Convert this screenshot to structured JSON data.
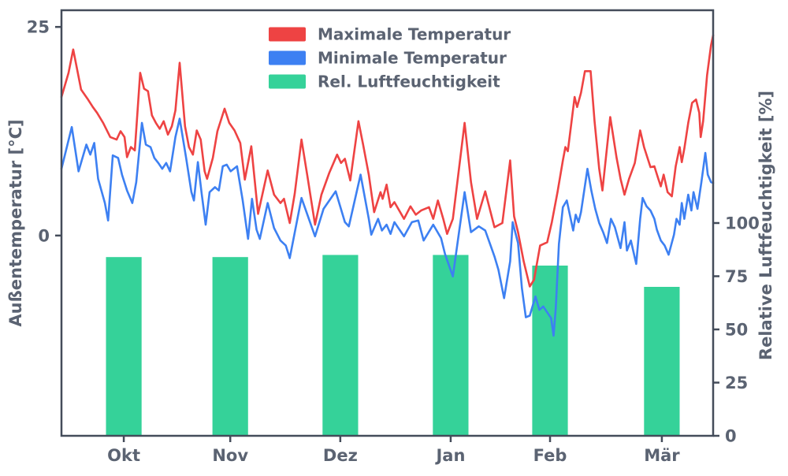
{
  "chart_data": {
    "type": "line+bar",
    "title": "",
    "left_axis": {
      "label": "Außentemperatur [°C]",
      "ticks": [
        0,
        25
      ],
      "ylim": [
        -24,
        27
      ]
    },
    "right_axis": {
      "label": "Relative Luftfeuchtigkeit [%]",
      "ticks": [
        0,
        25,
        50,
        75,
        100
      ],
      "ylim": [
        0,
        200
      ]
    },
    "x_axis": {
      "tick_labels": [
        "Okt",
        "Nov",
        "Dez",
        "Jan",
        "Feb",
        "Mär"
      ],
      "tick_days": [
        17.5,
        47.4,
        78.3,
        109.3,
        137.2,
        168.6
      ],
      "total_days": 183
    },
    "legend": [
      {
        "label": "Maximale Temperatur",
        "color": "#ee4343"
      },
      {
        "label": "Minimale Temperatur",
        "color": "#3d80f2"
      },
      {
        "label": "Rel. Luftfeuchtigkeit",
        "color": "#35d299"
      }
    ],
    "humidity_bars": {
      "months": [
        "Okt",
        "Nov",
        "Dez",
        "Jan",
        "Feb",
        "Mär"
      ],
      "values_pct": [
        84,
        84,
        85,
        85,
        80,
        70
      ],
      "bar_width_days": 10,
      "color": "#35d299"
    },
    "series": [
      {
        "name": "Maximale Temperatur",
        "color": "#ee4343",
        "points": [
          [
            0,
            16.6
          ],
          [
            2,
            19.5
          ],
          [
            3.3,
            22.3
          ],
          [
            5.5,
            17.5
          ],
          [
            7.3,
            16.4
          ],
          [
            8.8,
            15.4
          ],
          [
            10,
            14.7
          ],
          [
            11.7,
            13.5
          ],
          [
            13.7,
            11.8
          ],
          [
            15.5,
            11.5
          ],
          [
            16.6,
            12.5
          ],
          [
            17.7,
            11.8
          ],
          [
            18.4,
            9.4
          ],
          [
            19.5,
            10.6
          ],
          [
            20.6,
            10.2
          ],
          [
            22.1,
            19.5
          ],
          [
            23.2,
            17.6
          ],
          [
            24.3,
            17.3
          ],
          [
            25.4,
            14.4
          ],
          [
            26.5,
            13.5
          ],
          [
            27.6,
            12.8
          ],
          [
            28.7,
            13.7
          ],
          [
            29.9,
            12.1
          ],
          [
            31,
            13.1
          ],
          [
            32,
            15
          ],
          [
            33.2,
            20.7
          ],
          [
            34.7,
            13.1
          ],
          [
            35.8,
            10.6
          ],
          [
            36.9,
            9.7
          ],
          [
            38,
            12.6
          ],
          [
            39.1,
            11.5
          ],
          [
            40.2,
            7.7
          ],
          [
            40.9,
            6.8
          ],
          [
            42.5,
            9.3
          ],
          [
            43.8,
            12.5
          ],
          [
            45.8,
            15.2
          ],
          [
            47.1,
            13.5
          ],
          [
            48.6,
            12.6
          ],
          [
            50.2,
            11.1
          ],
          [
            51.5,
            6.7
          ],
          [
            53.3,
            10.7
          ],
          [
            55.2,
            2.6
          ],
          [
            57.9,
            7.8
          ],
          [
            59.7,
            4.9
          ],
          [
            61.5,
            3.9
          ],
          [
            62.5,
            4.4
          ],
          [
            64.1,
            1.5
          ],
          [
            65.5,
            5
          ],
          [
            67.4,
            11.5
          ],
          [
            69,
            7.3
          ],
          [
            71.2,
            1.3
          ],
          [
            73,
            4.9
          ],
          [
            75.2,
            7.5
          ],
          [
            77.4,
            9.7
          ],
          [
            78.5,
            8.7
          ],
          [
            79.6,
            9.2
          ],
          [
            81.1,
            6.6
          ],
          [
            83.4,
            13.7
          ],
          [
            84.7,
            10.9
          ],
          [
            86.3,
            7.3
          ],
          [
            87.8,
            2.8
          ],
          [
            89.6,
            5.2
          ],
          [
            90.2,
            4.4
          ],
          [
            91.3,
            6.1
          ],
          [
            92.4,
            3.4
          ],
          [
            93.5,
            4
          ],
          [
            96.2,
            2
          ],
          [
            98,
            3.5
          ],
          [
            99.5,
            2.5
          ],
          [
            101,
            3
          ],
          [
            103.2,
            3.4
          ],
          [
            104.4,
            2
          ],
          [
            105.7,
            4.2
          ],
          [
            107.2,
            2
          ],
          [
            108.3,
            0.2
          ],
          [
            109.9,
            2
          ],
          [
            113.2,
            13.5
          ],
          [
            115,
            6.4
          ],
          [
            116.7,
            2
          ],
          [
            119,
            5.3
          ],
          [
            121.6,
            1
          ],
          [
            123.8,
            1.5
          ],
          [
            126,
            9
          ],
          [
            127.1,
            2.3
          ],
          [
            128.2,
            0.4
          ],
          [
            129.8,
            -3.1
          ],
          [
            131.5,
            -6.1
          ],
          [
            132.7,
            -5.3
          ],
          [
            134.4,
            -1.2
          ],
          [
            136.4,
            -0.8
          ],
          [
            137.7,
            1.6
          ],
          [
            139.3,
            5.2
          ],
          [
            140.8,
            9
          ],
          [
            141.5,
            10.6
          ],
          [
            142.2,
            10.1
          ],
          [
            144.1,
            16.6
          ],
          [
            144.8,
            15.4
          ],
          [
            145.9,
            17.1
          ],
          [
            147,
            19.7
          ],
          [
            148.6,
            19.7
          ],
          [
            149.7,
            13.7
          ],
          [
            151,
            8
          ],
          [
            151.9,
            5.4
          ],
          [
            154.1,
            14.2
          ],
          [
            155.9,
            9.3
          ],
          [
            157,
            6.8
          ],
          [
            158.1,
            4.9
          ],
          [
            159.4,
            6.8
          ],
          [
            161,
            8.7
          ],
          [
            162.5,
            12.6
          ],
          [
            163.6,
            10.6
          ],
          [
            165.4,
            8.2
          ],
          [
            166.5,
            8.3
          ],
          [
            167.6,
            6.8
          ],
          [
            168.3,
            5.9
          ],
          [
            169.1,
            7.3
          ],
          [
            170.2,
            5.2
          ],
          [
            171.4,
            4.7
          ],
          [
            172.5,
            8.3
          ],
          [
            173.6,
            10.6
          ],
          [
            174.2,
            8.8
          ],
          [
            174.9,
            10.4
          ],
          [
            176,
            13.5
          ],
          [
            177.1,
            15.9
          ],
          [
            178.2,
            16.3
          ],
          [
            179.1,
            14.7
          ],
          [
            179.5,
            11.8
          ],
          [
            180.2,
            13.7
          ],
          [
            181.3,
            19.2
          ],
          [
            182.4,
            22.8
          ],
          [
            183,
            24
          ]
        ]
      },
      {
        "name": "Minimale Temperatur",
        "color": "#3d80f2",
        "points": [
          [
            0,
            8
          ],
          [
            2.9,
            13
          ],
          [
            4.8,
            7.7
          ],
          [
            7,
            10.9
          ],
          [
            8.1,
            9.7
          ],
          [
            9.2,
            11.1
          ],
          [
            10.3,
            6.8
          ],
          [
            12.2,
            3.9
          ],
          [
            13.1,
            1.8
          ],
          [
            14.4,
            9.6
          ],
          [
            15.9,
            9.3
          ],
          [
            17,
            7.3
          ],
          [
            18.4,
            5.4
          ],
          [
            19.9,
            3.9
          ],
          [
            21,
            6.4
          ],
          [
            22.6,
            13.5
          ],
          [
            23.7,
            10.9
          ],
          [
            25,
            10.6
          ],
          [
            26.1,
            9.3
          ],
          [
            27.2,
            8.7
          ],
          [
            28.3,
            8
          ],
          [
            29.4,
            8.7
          ],
          [
            30.5,
            7.7
          ],
          [
            32,
            11.8
          ],
          [
            33.2,
            14
          ],
          [
            35,
            9.3
          ],
          [
            36.5,
            5.2
          ],
          [
            37.2,
            4.2
          ],
          [
            38.3,
            8.8
          ],
          [
            39.4,
            4.9
          ],
          [
            40.5,
            1.3
          ],
          [
            41.6,
            5.2
          ],
          [
            43.1,
            5.8
          ],
          [
            44.2,
            5.4
          ],
          [
            45.3,
            8.3
          ],
          [
            46.4,
            8.5
          ],
          [
            47.5,
            7.7
          ],
          [
            49.3,
            8.3
          ],
          [
            50.9,
            4.2
          ],
          [
            52.4,
            -0.4
          ],
          [
            53.5,
            4.4
          ],
          [
            54.8,
            0.7
          ],
          [
            55.7,
            -0.4
          ],
          [
            57.9,
            3.9
          ],
          [
            59.7,
            0.9
          ],
          [
            61.5,
            -0.6
          ],
          [
            63,
            -1.2
          ],
          [
            64.1,
            -2.7
          ],
          [
            67.4,
            4.5
          ],
          [
            71.2,
            -0.1
          ],
          [
            73.6,
            3.2
          ],
          [
            77,
            5.3
          ],
          [
            79.6,
            1.6
          ],
          [
            80.7,
            1.1
          ],
          [
            84,
            7.3
          ],
          [
            86.3,
            2
          ],
          [
            87,
            0.1
          ],
          [
            88.9,
            2
          ],
          [
            90,
            0.6
          ],
          [
            91.3,
            1.3
          ],
          [
            92.4,
            0.2
          ],
          [
            93.5,
            1.6
          ],
          [
            96.2,
            -0.1
          ],
          [
            98.4,
            1.6
          ],
          [
            100.2,
            1.8
          ],
          [
            101.7,
            -0.6
          ],
          [
            104.4,
            1.3
          ],
          [
            106.6,
            -0.3
          ],
          [
            107.7,
            -2.2
          ],
          [
            109.9,
            -4.9
          ],
          [
            113.2,
            5.2
          ],
          [
            115,
            0.4
          ],
          [
            117.2,
            1.1
          ],
          [
            119,
            0.6
          ],
          [
            120.5,
            -1.2
          ],
          [
            121.6,
            -2.5
          ],
          [
            122.7,
            -4.1
          ],
          [
            124.3,
            -7.5
          ],
          [
            126,
            -3.1
          ],
          [
            126.7,
            1.6
          ],
          [
            128.2,
            -0.9
          ],
          [
            129.3,
            -6.3
          ],
          [
            130.4,
            -9.8
          ],
          [
            131.5,
            -9.6
          ],
          [
            133.1,
            -7.3
          ],
          [
            134.2,
            -8.9
          ],
          [
            135.3,
            -8.5
          ],
          [
            136.4,
            -9.2
          ],
          [
            137.5,
            -9.9
          ],
          [
            138.2,
            -12
          ],
          [
            138.8,
            -8.7
          ],
          [
            139.7,
            -1
          ],
          [
            140.8,
            3.4
          ],
          [
            141.9,
            4.2
          ],
          [
            143.7,
            0.6
          ],
          [
            144.4,
            2.5
          ],
          [
            145.2,
            1.6
          ],
          [
            145.9,
            2.8
          ],
          [
            147.7,
            8
          ],
          [
            148.8,
            5.4
          ],
          [
            149.9,
            3.2
          ],
          [
            151,
            1.5
          ],
          [
            152.1,
            0.4
          ],
          [
            153.2,
            -0.9
          ],
          [
            154.3,
            2
          ],
          [
            155.4,
            1
          ],
          [
            157,
            -1.5
          ],
          [
            158.1,
            1.6
          ],
          [
            158.8,
            -1.8
          ],
          [
            159.9,
            -0.6
          ],
          [
            161.4,
            -3.4
          ],
          [
            162.5,
            2
          ],
          [
            163.2,
            4.5
          ],
          [
            164.3,
            3.5
          ],
          [
            165.4,
            3
          ],
          [
            166.5,
            2
          ],
          [
            167.2,
            0.7
          ],
          [
            168.3,
            -0.6
          ],
          [
            169.4,
            -1.2
          ],
          [
            170.5,
            -2.3
          ],
          [
            172,
            0.1
          ],
          [
            172.7,
            2
          ],
          [
            173.6,
            1.3
          ],
          [
            174.2,
            3.9
          ],
          [
            174.9,
            2
          ],
          [
            176,
            4.9
          ],
          [
            176.9,
            3
          ],
          [
            177.5,
            5.2
          ],
          [
            178.6,
            3.2
          ],
          [
            179.7,
            6.4
          ],
          [
            180.8,
            9.9
          ],
          [
            181.5,
            7.3
          ],
          [
            182.4,
            6.4
          ],
          [
            183,
            6.3
          ]
        ]
      }
    ],
    "colors": {
      "spine": "#444c5a",
      "text": "#5b6372",
      "background": "#ffffff"
    }
  }
}
